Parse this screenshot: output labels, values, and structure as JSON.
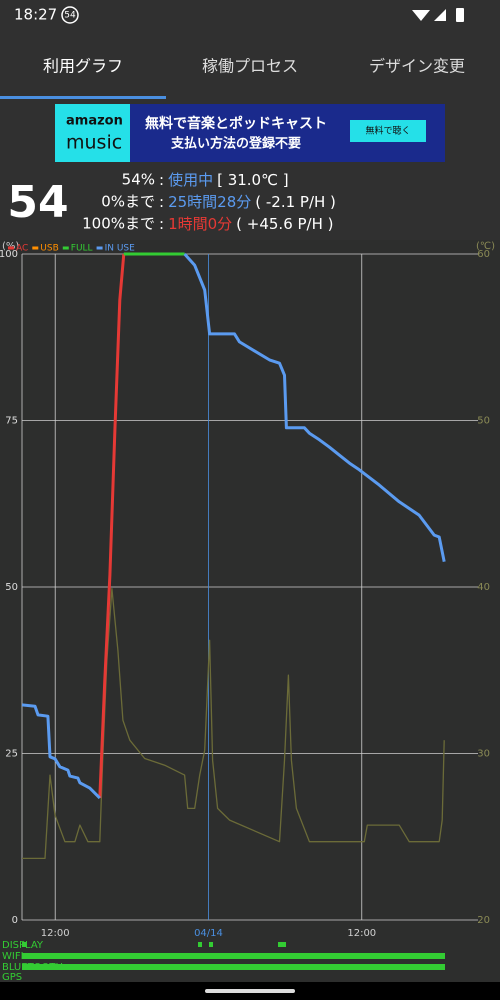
{
  "status_bar": {
    "time": "18:27",
    "badge": "54"
  },
  "tabs": [
    "利用グラフ",
    "稼働プロセス",
    "デザイン変更"
  ],
  "ad": {
    "brand_top": "amazon",
    "brand_bottom": "music",
    "line1": "無料で音楽とポッドキャスト",
    "line2": "支払い方法の登録不要",
    "button": "無料で聴く"
  },
  "battery": {
    "level": "54",
    "percent": "54%",
    "sep": ":",
    "state": "使用中",
    "temp": "[ 31.0℃ ]",
    "to_empty_label": "0%まで",
    "to_empty_time": "25時間28分",
    "to_empty_rate": "( -2.1 P/H )",
    "to_full_label": "100%まで",
    "to_full_time": "1時間0分",
    "to_full_rate": "( +45.6 P/H )"
  },
  "chart_data": {
    "type": "line",
    "ylabel": "(%)",
    "y2label": "(℃)",
    "xlim": [
      9.4,
      45.1
    ],
    "xticks": [
      {
        "value": 12,
        "label": "12:00"
      },
      {
        "value": 24,
        "label": "04/14"
      },
      {
        "value": 36,
        "label": "12:00"
      }
    ],
    "xgrid_colors": [
      "#d0d0d0",
      "#4a8fe0",
      "#d0d0d0"
    ],
    "ylim": [
      0,
      100
    ],
    "yticks": [
      0,
      25,
      50,
      75,
      100
    ],
    "y2lim": [
      20,
      60
    ],
    "y2ticks": [
      20,
      30,
      40,
      50,
      60
    ],
    "grid": true,
    "series": [
      {
        "name": "AC",
        "color": "#e53935",
        "x": [
          15.49,
          15.88,
          16.28,
          16.67,
          17.06,
          17.37
        ],
        "values": [
          18.3,
          36,
          51.8,
          73.6,
          93.1,
          100
        ]
      },
      {
        "name": "USB",
        "color": "#ff8f00",
        "x": [],
        "values": []
      },
      {
        "name": "FULL",
        "color": "#33cc33",
        "x": [
          17.37,
          22.13
        ],
        "values": [
          100,
          100
        ]
      },
      {
        "name": "IN USE",
        "color": "#5b9bf0",
        "x": [
          9.4,
          10.42,
          10.65,
          11.43,
          11.59,
          11.98,
          12.37,
          12.99,
          13.15,
          13.78,
          13.93,
          14.71,
          15.49,
          null,
          22.13,
          22.92,
          23.7,
          24.09,
          26.04,
          26.43,
          28.78,
          29.56,
          29.95,
          30.1,
          31.51,
          31.9,
          32.68,
          33.46,
          34.24,
          35.03,
          35.81,
          37.37,
          38.93,
          40.49,
          41.67,
          42.06,
          42.45
        ],
        "values": [
          32.3,
          32.1,
          30.8,
          30.6,
          24.5,
          24.2,
          23,
          22.5,
          21.6,
          21.3,
          20.6,
          19.8,
          18.3,
          null,
          100,
          98.3,
          94.6,
          88,
          88,
          86.8,
          84.1,
          83.6,
          81.8,
          73.9,
          73.9,
          73.1,
          72.1,
          71,
          69.8,
          68.6,
          67.6,
          65.3,
          62.8,
          60.8,
          57.8,
          57.5,
          53.8
        ]
      },
      {
        "name": "温度",
        "color": "#6b6b38",
        "axis": "y2",
        "legend": false,
        "x": [
          9.4,
          11.2,
          11.59,
          11.98,
          12.76,
          13.54,
          13.93,
          14.56,
          15.49,
          15.72,
          16.05,
          16.44,
          16.91,
          17.3,
          17.84,
          19.01,
          20.57,
          22.13,
          22.37,
          22.92,
          23.31,
          23.7,
          24.09,
          24.32,
          24.71,
          25.65,
          29.56,
          29.95,
          30.26,
          30.49,
          30.88,
          31.9,
          36.2,
          36.43,
          38.93,
          39.71,
          42.06,
          42.3,
          42.45
        ],
        "values": [
          23.7,
          23.7,
          28.7,
          26.3,
          24.7,
          24.7,
          25.7,
          24.7,
          24.7,
          29.6,
          35.6,
          39.9,
          36.2,
          32,
          30.8,
          29.7,
          29.3,
          28.7,
          26.7,
          26.7,
          28.7,
          30.2,
          36.8,
          29.6,
          26.7,
          26,
          24.7,
          29.6,
          34.7,
          29.6,
          26.7,
          24.7,
          24.7,
          25.7,
          25.7,
          24.7,
          24.7,
          26,
          30.8
        ]
      }
    ]
  },
  "strips": [
    "DISPLAY",
    "WIFI",
    "BLUETOOTH",
    "GPS"
  ]
}
